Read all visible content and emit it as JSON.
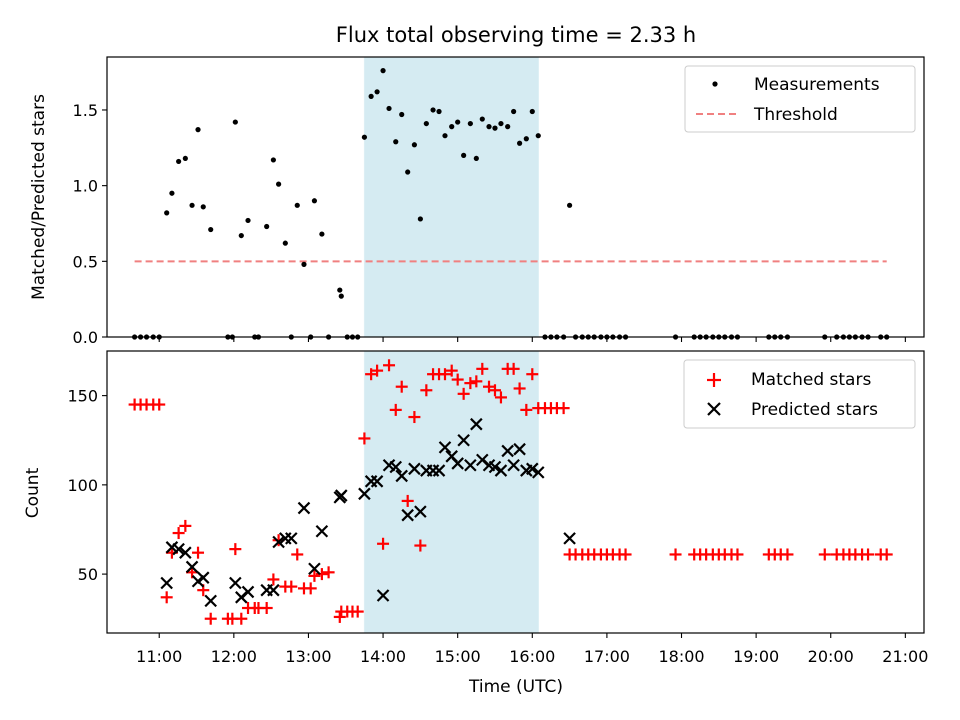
{
  "title": "Flux total observing time = 2.33 h",
  "colors": {
    "measurements": "#000000",
    "threshold": "#f08080",
    "matched": "#ff0000",
    "predicted": "#000000",
    "highlight": "#add8e6"
  },
  "chart_data": [
    {
      "type": "scatter",
      "ylabel": "Matched/Predicted stars",
      "xlim": [
        10.3,
        21.25
      ],
      "ylim": [
        0,
        1.85
      ],
      "yticks": [
        0.0,
        0.5,
        1.0,
        1.5
      ],
      "ytick_labels": [
        "0.0",
        "0.5",
        "1.0",
        "1.5"
      ],
      "highlight_range": [
        "13:45",
        "16:05"
      ],
      "legend": {
        "position": "top-right",
        "entries": [
          "Measurements",
          "Threshold"
        ]
      },
      "series": [
        {
          "name": "Measurements",
          "marker": "dot",
          "points": [
            [
              10.67,
              0
            ],
            [
              10.75,
              0
            ],
            [
              10.83,
              0
            ],
            [
              10.92,
              0
            ],
            [
              11.0,
              0
            ],
            [
              11.1,
              0.82
            ],
            [
              11.17,
              0.95
            ],
            [
              11.26,
              1.16
            ],
            [
              11.35,
              1.18
            ],
            [
              11.44,
              0.87
            ],
            [
              11.52,
              1.37
            ],
            [
              11.59,
              0.86
            ],
            [
              11.69,
              0.71
            ],
            [
              11.92,
              0
            ],
            [
              11.98,
              0
            ],
            [
              12.02,
              1.42
            ],
            [
              12.1,
              0.67
            ],
            [
              12.19,
              0.77
            ],
            [
              12.28,
              0
            ],
            [
              12.33,
              0
            ],
            [
              12.44,
              0.73
            ],
            [
              12.53,
              1.17
            ],
            [
              12.6,
              1.01
            ],
            [
              12.69,
              0.62
            ],
            [
              12.77,
              0
            ],
            [
              12.85,
              0.87
            ],
            [
              12.94,
              0.48
            ],
            [
              13.03,
              0
            ],
            [
              13.08,
              0.9
            ],
            [
              13.18,
              0.68
            ],
            [
              13.27,
              0
            ],
            [
              13.42,
              0.31
            ],
            [
              13.44,
              0.27
            ],
            [
              13.52,
              0
            ],
            [
              13.59,
              0
            ],
            [
              13.66,
              0
            ],
            [
              13.75,
              1.32
            ],
            [
              13.84,
              1.59
            ],
            [
              13.92,
              1.62
            ],
            [
              14.0,
              1.76
            ],
            [
              14.08,
              1.51
            ],
            [
              14.17,
              1.29
            ],
            [
              14.25,
              1.47
            ],
            [
              14.33,
              1.09
            ],
            [
              14.42,
              1.27
            ],
            [
              14.5,
              0.78
            ],
            [
              14.58,
              1.41
            ],
            [
              14.67,
              1.5
            ],
            [
              14.75,
              1.49
            ],
            [
              14.83,
              1.33
            ],
            [
              14.92,
              1.39
            ],
            [
              15.0,
              1.42
            ],
            [
              15.08,
              1.2
            ],
            [
              15.17,
              1.41
            ],
            [
              15.25,
              1.18
            ],
            [
              15.33,
              1.44
            ],
            [
              15.42,
              1.39
            ],
            [
              15.5,
              1.38
            ],
            [
              15.58,
              1.41
            ],
            [
              15.67,
              1.39
            ],
            [
              15.75,
              1.49
            ],
            [
              15.83,
              1.28
            ],
            [
              15.92,
              1.31
            ],
            [
              16.0,
              1.49
            ],
            [
              16.08,
              1.33
            ],
            [
              16.17,
              0
            ],
            [
              16.25,
              0
            ],
            [
              16.33,
              0
            ],
            [
              16.42,
              0
            ],
            [
              16.5,
              0.87
            ],
            [
              16.58,
              0
            ],
            [
              16.67,
              0
            ],
            [
              16.75,
              0
            ],
            [
              16.83,
              0
            ],
            [
              16.92,
              0
            ],
            [
              17.0,
              0
            ],
            [
              17.08,
              0
            ],
            [
              17.17,
              0
            ],
            [
              17.25,
              0
            ],
            [
              17.92,
              0
            ],
            [
              18.17,
              0
            ],
            [
              18.25,
              0
            ],
            [
              18.33,
              0
            ],
            [
              18.42,
              0
            ],
            [
              18.5,
              0
            ],
            [
              18.58,
              0
            ],
            [
              18.67,
              0
            ],
            [
              18.75,
              0
            ],
            [
              19.17,
              0
            ],
            [
              19.25,
              0
            ],
            [
              19.33,
              0
            ],
            [
              19.42,
              0
            ],
            [
              19.92,
              0
            ],
            [
              20.08,
              0
            ],
            [
              20.17,
              0
            ],
            [
              20.25,
              0
            ],
            [
              20.33,
              0
            ],
            [
              20.42,
              0
            ],
            [
              20.5,
              0
            ],
            [
              20.67,
              0
            ],
            [
              20.75,
              0
            ]
          ]
        },
        {
          "name": "Threshold",
          "style": "dashed",
          "points": [
            [
              10.67,
              0.5
            ],
            [
              20.75,
              0.5
            ]
          ]
        }
      ]
    },
    {
      "type": "scatter",
      "xlabel": "Time (UTC)",
      "ylabel": "Count",
      "xlim": [
        10.3,
        21.25
      ],
      "ylim": [
        17,
        175
      ],
      "xticks": [
        11,
        12,
        13,
        14,
        15,
        16,
        17,
        18,
        19,
        20,
        21
      ],
      "xtick_labels": [
        "11:00",
        "12:00",
        "13:00",
        "14:00",
        "15:00",
        "16:00",
        "17:00",
        "18:00",
        "19:00",
        "20:00",
        "21:00"
      ],
      "yticks": [
        50,
        100,
        150
      ],
      "ytick_labels": [
        "50",
        "100",
        "150"
      ],
      "highlight_range": [
        "13:45",
        "16:05"
      ],
      "legend": {
        "position": "top-right",
        "entries": [
          "Matched stars",
          "Predicted stars"
        ]
      },
      "series": [
        {
          "name": "Matched stars",
          "marker": "plus",
          "points": [
            [
              10.67,
              145
            ],
            [
              10.75,
              145
            ],
            [
              10.83,
              145
            ],
            [
              10.92,
              145
            ],
            [
              11.0,
              145
            ],
            [
              11.1,
              37
            ],
            [
              11.17,
              62
            ],
            [
              11.26,
              73
            ],
            [
              11.35,
              77
            ],
            [
              11.44,
              51
            ],
            [
              11.52,
              62
            ],
            [
              11.59,
              41
            ],
            [
              11.69,
              25
            ],
            [
              11.92,
              25
            ],
            [
              11.98,
              25
            ],
            [
              12.02,
              64
            ],
            [
              12.1,
              25
            ],
            [
              12.19,
              31
            ],
            [
              12.28,
              31
            ],
            [
              12.33,
              31
            ],
            [
              12.44,
              31
            ],
            [
              12.53,
              47
            ],
            [
              12.6,
              69
            ],
            [
              12.69,
              43
            ],
            [
              12.77,
              43
            ],
            [
              12.85,
              61
            ],
            [
              12.94,
              42
            ],
            [
              13.03,
              42
            ],
            [
              13.08,
              49
            ],
            [
              13.18,
              50
            ],
            [
              13.27,
              51
            ],
            [
              13.42,
              26
            ],
            [
              13.44,
              29
            ],
            [
              13.52,
              29
            ],
            [
              13.59,
              29
            ],
            [
              13.66,
              29
            ],
            [
              13.75,
              126
            ],
            [
              13.84,
              162
            ],
            [
              13.92,
              164
            ],
            [
              14.0,
              67
            ],
            [
              14.08,
              167
            ],
            [
              14.17,
              142
            ],
            [
              14.25,
              155
            ],
            [
              14.33,
              91
            ],
            [
              14.42,
              138
            ],
            [
              14.5,
              66
            ],
            [
              14.58,
              153
            ],
            [
              14.67,
              162
            ],
            [
              14.75,
              162
            ],
            [
              14.83,
              162
            ],
            [
              14.92,
              164
            ],
            [
              15.0,
              159
            ],
            [
              15.08,
              151
            ],
            [
              15.17,
              157
            ],
            [
              15.25,
              158
            ],
            [
              15.33,
              165
            ],
            [
              15.42,
              155
            ],
            [
              15.5,
              153
            ],
            [
              15.58,
              149
            ],
            [
              15.67,
              165
            ],
            [
              15.75,
              165
            ],
            [
              15.83,
              154
            ],
            [
              15.92,
              142
            ],
            [
              16.0,
              162
            ],
            [
              16.08,
              143
            ],
            [
              16.17,
              143
            ],
            [
              16.25,
              143
            ],
            [
              16.33,
              143
            ],
            [
              16.42,
              143
            ],
            [
              16.5,
              61
            ],
            [
              16.58,
              61
            ],
            [
              16.67,
              61
            ],
            [
              16.75,
              61
            ],
            [
              16.83,
              61
            ],
            [
              16.92,
              61
            ],
            [
              17.0,
              61
            ],
            [
              17.08,
              61
            ],
            [
              17.17,
              61
            ],
            [
              17.25,
              61
            ],
            [
              17.92,
              61
            ],
            [
              18.17,
              61
            ],
            [
              18.25,
              61
            ],
            [
              18.33,
              61
            ],
            [
              18.42,
              61
            ],
            [
              18.5,
              61
            ],
            [
              18.58,
              61
            ],
            [
              18.67,
              61
            ],
            [
              18.75,
              61
            ],
            [
              19.17,
              61
            ],
            [
              19.25,
              61
            ],
            [
              19.33,
              61
            ],
            [
              19.42,
              61
            ],
            [
              19.92,
              61
            ],
            [
              20.08,
              61
            ],
            [
              20.17,
              61
            ],
            [
              20.25,
              61
            ],
            [
              20.33,
              61
            ],
            [
              20.42,
              61
            ],
            [
              20.5,
              61
            ],
            [
              20.67,
              61
            ],
            [
              20.75,
              61
            ]
          ]
        },
        {
          "name": "Predicted stars",
          "marker": "x",
          "points": [
            [
              11.1,
              45
            ],
            [
              11.17,
              65
            ],
            [
              11.26,
              64
            ],
            [
              11.35,
              62
            ],
            [
              11.44,
              54
            ],
            [
              11.52,
              46
            ],
            [
              11.59,
              48
            ],
            [
              11.69,
              35
            ],
            [
              12.02,
              45
            ],
            [
              12.1,
              37
            ],
            [
              12.19,
              40
            ],
            [
              12.44,
              41
            ],
            [
              12.53,
              41
            ],
            [
              12.6,
              68
            ],
            [
              12.69,
              70
            ],
            [
              12.77,
              70
            ],
            [
              12.94,
              87
            ],
            [
              13.08,
              53
            ],
            [
              13.18,
              74
            ],
            [
              13.42,
              93
            ],
            [
              13.44,
              94
            ],
            [
              13.75,
              95
            ],
            [
              13.84,
              102
            ],
            [
              13.92,
              102
            ],
            [
              14.0,
              38
            ],
            [
              14.08,
              111
            ],
            [
              14.17,
              110
            ],
            [
              14.25,
              105
            ],
            [
              14.33,
              83
            ],
            [
              14.42,
              109
            ],
            [
              14.5,
              85
            ],
            [
              14.58,
              108
            ],
            [
              14.67,
              108
            ],
            [
              14.75,
              108
            ],
            [
              14.83,
              121
            ],
            [
              14.92,
              116
            ],
            [
              15.0,
              112
            ],
            [
              15.08,
              125
            ],
            [
              15.17,
              111
            ],
            [
              15.25,
              134
            ],
            [
              15.33,
              114
            ],
            [
              15.42,
              111
            ],
            [
              15.5,
              110
            ],
            [
              15.58,
              108
            ],
            [
              15.67,
              119
            ],
            [
              15.75,
              111
            ],
            [
              15.83,
              120
            ],
            [
              15.92,
              108
            ],
            [
              16.0,
              109
            ],
            [
              16.08,
              107
            ],
            [
              16.5,
              70
            ]
          ]
        }
      ]
    }
  ]
}
